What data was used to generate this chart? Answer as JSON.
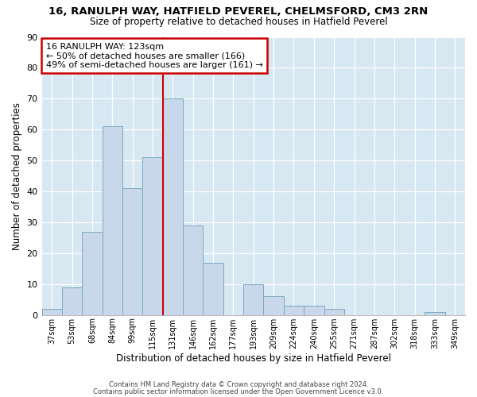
{
  "title1": "16, RANULPH WAY, HATFIELD PEVEREL, CHELMSFORD, CM3 2RN",
  "title2": "Size of property relative to detached houses in Hatfield Peverel",
  "xlabel": "Distribution of detached houses by size in Hatfield Peverel",
  "ylabel": "Number of detached properties",
  "categories": [
    "37sqm",
    "53sqm",
    "68sqm",
    "84sqm",
    "99sqm",
    "115sqm",
    "131sqm",
    "146sqm",
    "162sqm",
    "177sqm",
    "193sqm",
    "209sqm",
    "224sqm",
    "240sqm",
    "255sqm",
    "271sqm",
    "287sqm",
    "302sqm",
    "318sqm",
    "333sqm",
    "349sqm"
  ],
  "values": [
    2,
    9,
    27,
    61,
    41,
    51,
    70,
    29,
    17,
    0,
    10,
    6,
    3,
    3,
    2,
    0,
    0,
    0,
    0,
    1,
    0
  ],
  "bar_color": "#c8d8ea",
  "bar_edge_color": "#7aaabf",
  "vline_x": 5.5,
  "vline_color": "#cc0000",
  "annotation_title": "16 RANULPH WAY: 123sqm",
  "annotation_line1": "← 50% of detached houses are smaller (166)",
  "annotation_line2": "49% of semi-detached houses are larger (161) →",
  "annotation_box_edgecolor": "#cc0000",
  "ylim": [
    0,
    90
  ],
  "yticks": [
    0,
    10,
    20,
    30,
    40,
    50,
    60,
    70,
    80,
    90
  ],
  "ax_facecolor": "#d8e8f2",
  "fig_facecolor": "#ffffff",
  "footer1": "Contains HM Land Registry data © Crown copyright and database right 2024.",
  "footer2": "Contains public sector information licensed under the Open Government Licence v3.0."
}
